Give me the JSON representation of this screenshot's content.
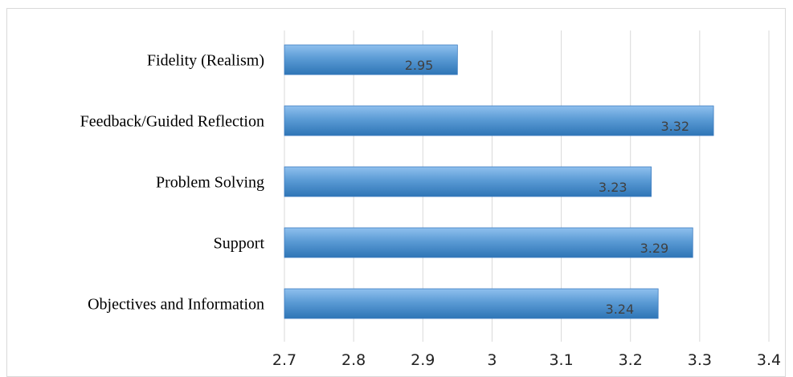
{
  "chart_data": {
    "type": "bar",
    "orientation": "horizontal",
    "title": "",
    "xlabel": "",
    "ylabel": "",
    "categories": [
      "Fidelity (Realism)",
      "Feedback/Guided Reflection",
      "Problem Solving",
      "Support",
      "Objectives and Information"
    ],
    "values": [
      2.95,
      3.32,
      3.23,
      3.29,
      3.24
    ],
    "data_labels": [
      "2.95",
      "3.32",
      "3.23",
      "3.29",
      "3.24"
    ],
    "xlim": [
      2.7,
      3.4
    ],
    "ticks": [
      2.7,
      2.8,
      2.9,
      3.0,
      3.1,
      3.2,
      3.3,
      3.4
    ],
    "tick_labels": [
      "2.7",
      "2.8",
      "2.9",
      "3",
      "3.1",
      "3.2",
      "3.3",
      "3.4"
    ],
    "grid": true,
    "legend": "none",
    "colors": {
      "bar_fill": "#5b9bd5",
      "bar_top": "#8fc0ee",
      "bar_bottom": "#2e75b6",
      "bar_stroke": "#3d7cc0"
    }
  }
}
